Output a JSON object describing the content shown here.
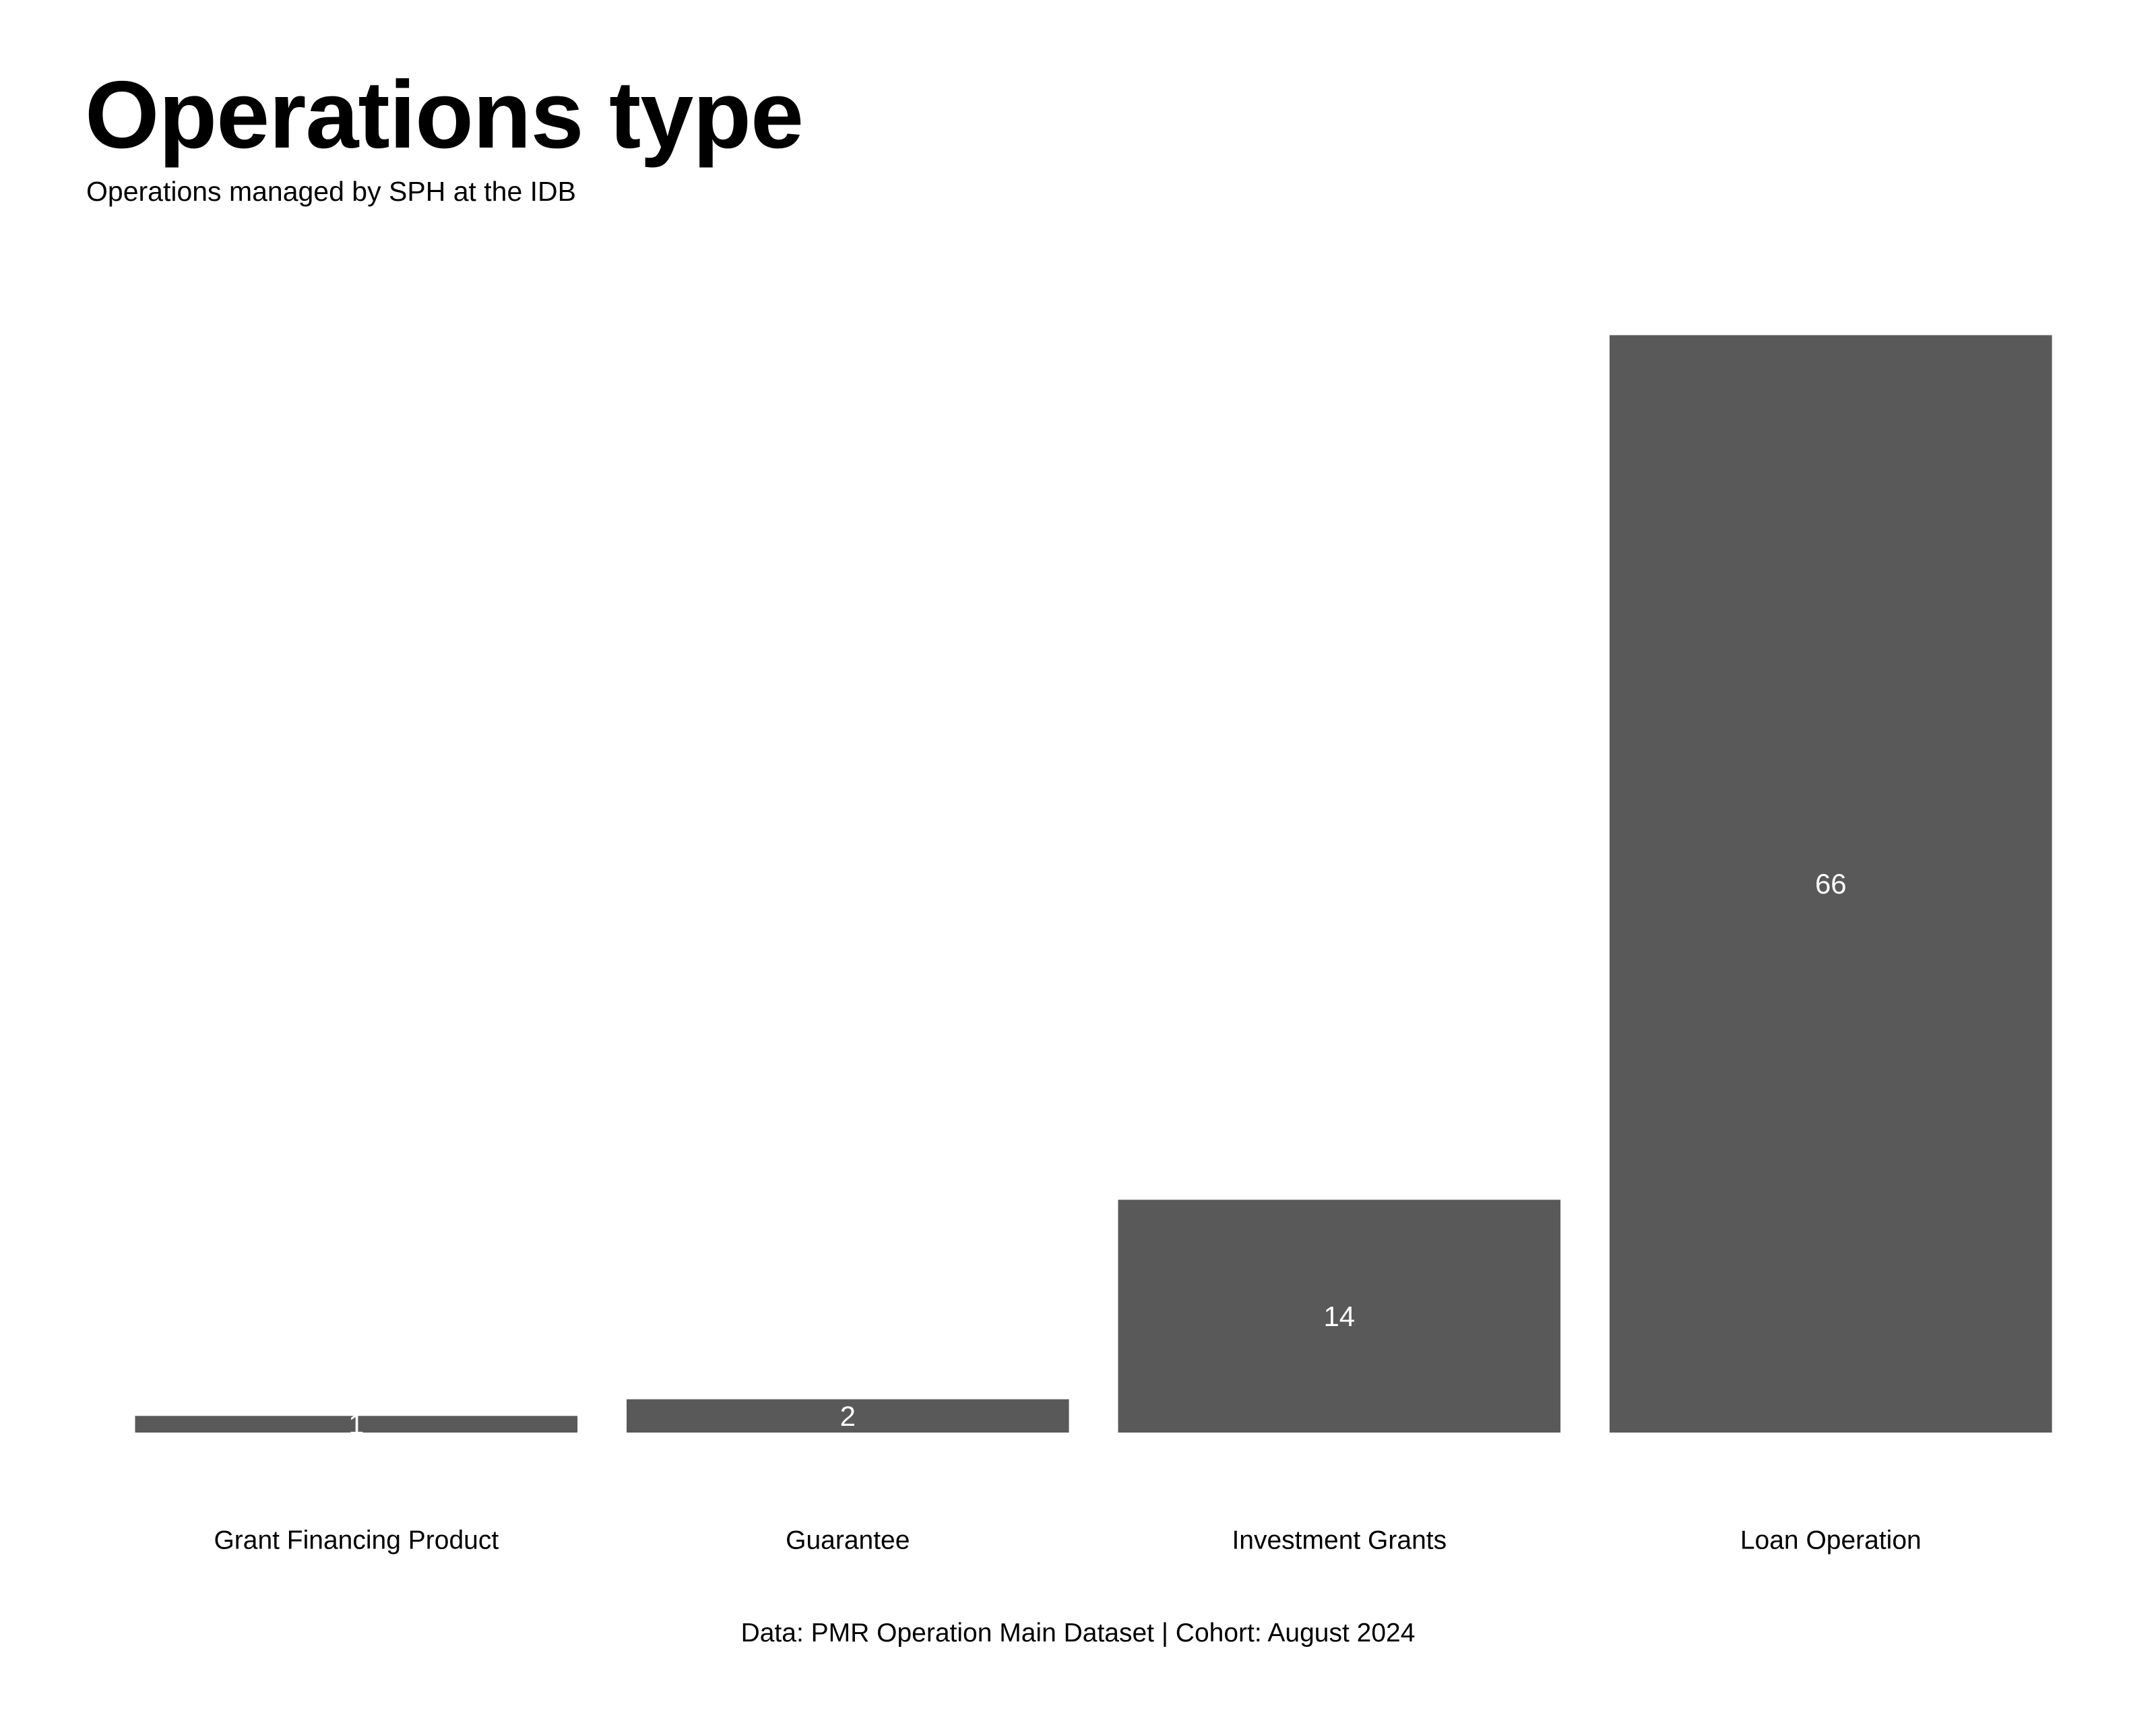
{
  "title": "Operations type",
  "subtitle": "Operations managed by SPH at the IDB",
  "caption": "Data: PMR Operation Main Dataset | Cohort: August 2024",
  "colors": {
    "bar": "#595959",
    "bar_label": "#ffffff",
    "text": "#000000",
    "background": "#ffffff"
  },
  "chart_data": {
    "type": "bar",
    "title": "Operations type",
    "subtitle": "Operations managed by SPH at the IDB",
    "xlabel": "",
    "ylabel": "",
    "categories": [
      "Grant Financing Product",
      "Guarantee",
      "Investment Grants",
      "Loan Operation"
    ],
    "values": [
      1,
      2,
      14,
      66
    ],
    "ylim": [
      0,
      69.3
    ],
    "grid": false,
    "legend": "none",
    "caption": "Data: PMR Operation Main Dataset | Cohort: August 2024"
  }
}
